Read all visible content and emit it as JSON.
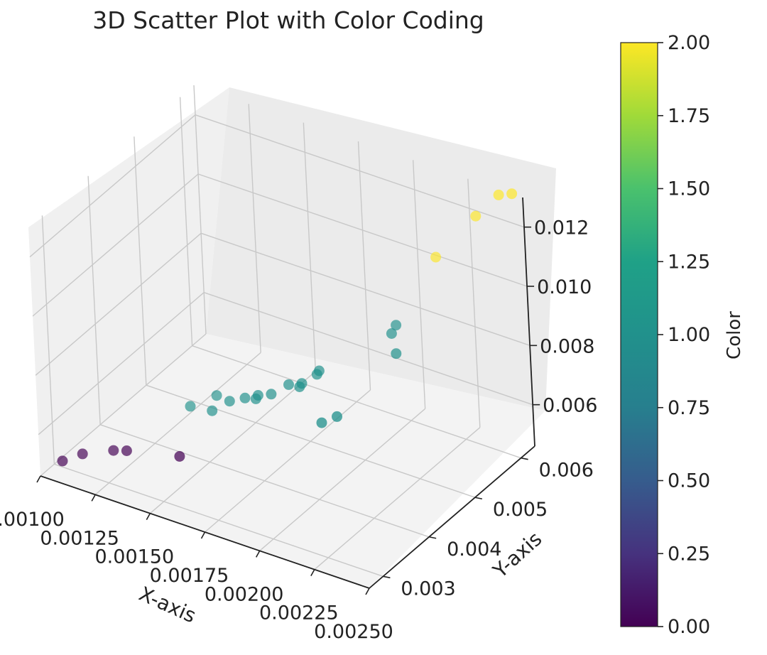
{
  "chart_data": {
    "type": "scatter3d",
    "title": "3D Scatter Plot with Color Coding",
    "xlabel": "X-axis",
    "ylabel": "Y-axis",
    "zlabel": "",
    "colorbar_label": "Color",
    "colormap": "viridis",
    "xlim": [
      0.001,
      0.0025
    ],
    "ylim": [
      0.0027,
      0.0063
    ],
    "zlim": [
      0.0046,
      0.013
    ],
    "x_ticks": [
      "0.00100",
      "0.00125",
      "0.00150",
      "0.00175",
      "0.00200",
      "0.00225",
      "0.00250"
    ],
    "x_tick_values": [
      0.001,
      0.00125,
      0.0015,
      0.00175,
      0.002,
      0.00225,
      0.0025
    ],
    "y_ticks": [
      "0.003",
      "0.004",
      "0.005",
      "0.006"
    ],
    "y_tick_values": [
      0.003,
      0.004,
      0.005,
      0.006
    ],
    "z_ticks": [
      "0.006",
      "0.008",
      "0.010",
      "0.012"
    ],
    "z_tick_values": [
      0.006,
      0.008,
      0.01,
      0.012
    ],
    "colorbar_ticks": [
      "0.00",
      "0.25",
      "0.50",
      "0.75",
      "1.00",
      "1.25",
      "1.50",
      "1.75",
      "2.00"
    ],
    "colorbar_range": [
      0,
      2
    ],
    "points": [
      {
        "x": 0.00105,
        "y": 0.00295,
        "z": 0.0049,
        "c": 0
      },
      {
        "x": 0.0011,
        "y": 0.00315,
        "z": 0.005,
        "c": 0
      },
      {
        "x": 0.0012,
        "y": 0.00335,
        "z": 0.0051,
        "c": 0
      },
      {
        "x": 0.00125,
        "y": 0.0034,
        "z": 0.00515,
        "c": 0
      },
      {
        "x": 0.00145,
        "y": 0.0036,
        "z": 0.0052,
        "c": 0
      },
      {
        "x": 0.0014,
        "y": 0.0041,
        "z": 0.0061,
        "c": 1
      },
      {
        "x": 0.0015,
        "y": 0.0041,
        "z": 0.0062,
        "c": 1
      },
      {
        "x": 0.00148,
        "y": 0.0043,
        "z": 0.0064,
        "c": 1
      },
      {
        "x": 0.00155,
        "y": 0.00425,
        "z": 0.00645,
        "c": 1
      },
      {
        "x": 0.0016,
        "y": 0.00435,
        "z": 0.00655,
        "c": 1
      },
      {
        "x": 0.00165,
        "y": 0.00435,
        "z": 0.00665,
        "c": 1
      },
      {
        "x": 0.00165,
        "y": 0.0044,
        "z": 0.0067,
        "c": 1
      },
      {
        "x": 0.0017,
        "y": 0.00445,
        "z": 0.0068,
        "c": 1
      },
      {
        "x": 0.00175,
        "y": 0.0046,
        "z": 0.00705,
        "c": 1
      },
      {
        "x": 0.0018,
        "y": 0.0046,
        "z": 0.0071,
        "c": 1
      },
      {
        "x": 0.0018,
        "y": 0.00465,
        "z": 0.00715,
        "c": 1
      },
      {
        "x": 0.00185,
        "y": 0.00475,
        "z": 0.00745,
        "c": 1
      },
      {
        "x": 0.00185,
        "y": 0.0048,
        "z": 0.0075,
        "c": 1
      },
      {
        "x": 0.00195,
        "y": 0.00435,
        "z": 0.0066,
        "c": 1
      },
      {
        "x": 0.002,
        "y": 0.00445,
        "z": 0.0068,
        "c": 1
      },
      {
        "x": 0.00205,
        "y": 0.00545,
        "z": 0.0084,
        "c": 1
      },
      {
        "x": 0.00205,
        "y": 0.00555,
        "z": 0.00855,
        "c": 1
      },
      {
        "x": 0.0021,
        "y": 0.0053,
        "z": 0.00805,
        "c": 1
      },
      {
        "x": 0.00215,
        "y": 0.006,
        "z": 0.0105,
        "c": 2
      },
      {
        "x": 0.0023,
        "y": 0.0062,
        "z": 0.012,
        "c": 2
      },
      {
        "x": 0.0024,
        "y": 0.00625,
        "z": 0.0129,
        "c": 2
      },
      {
        "x": 0.00245,
        "y": 0.0063,
        "z": 0.013,
        "c": 2
      }
    ]
  }
}
